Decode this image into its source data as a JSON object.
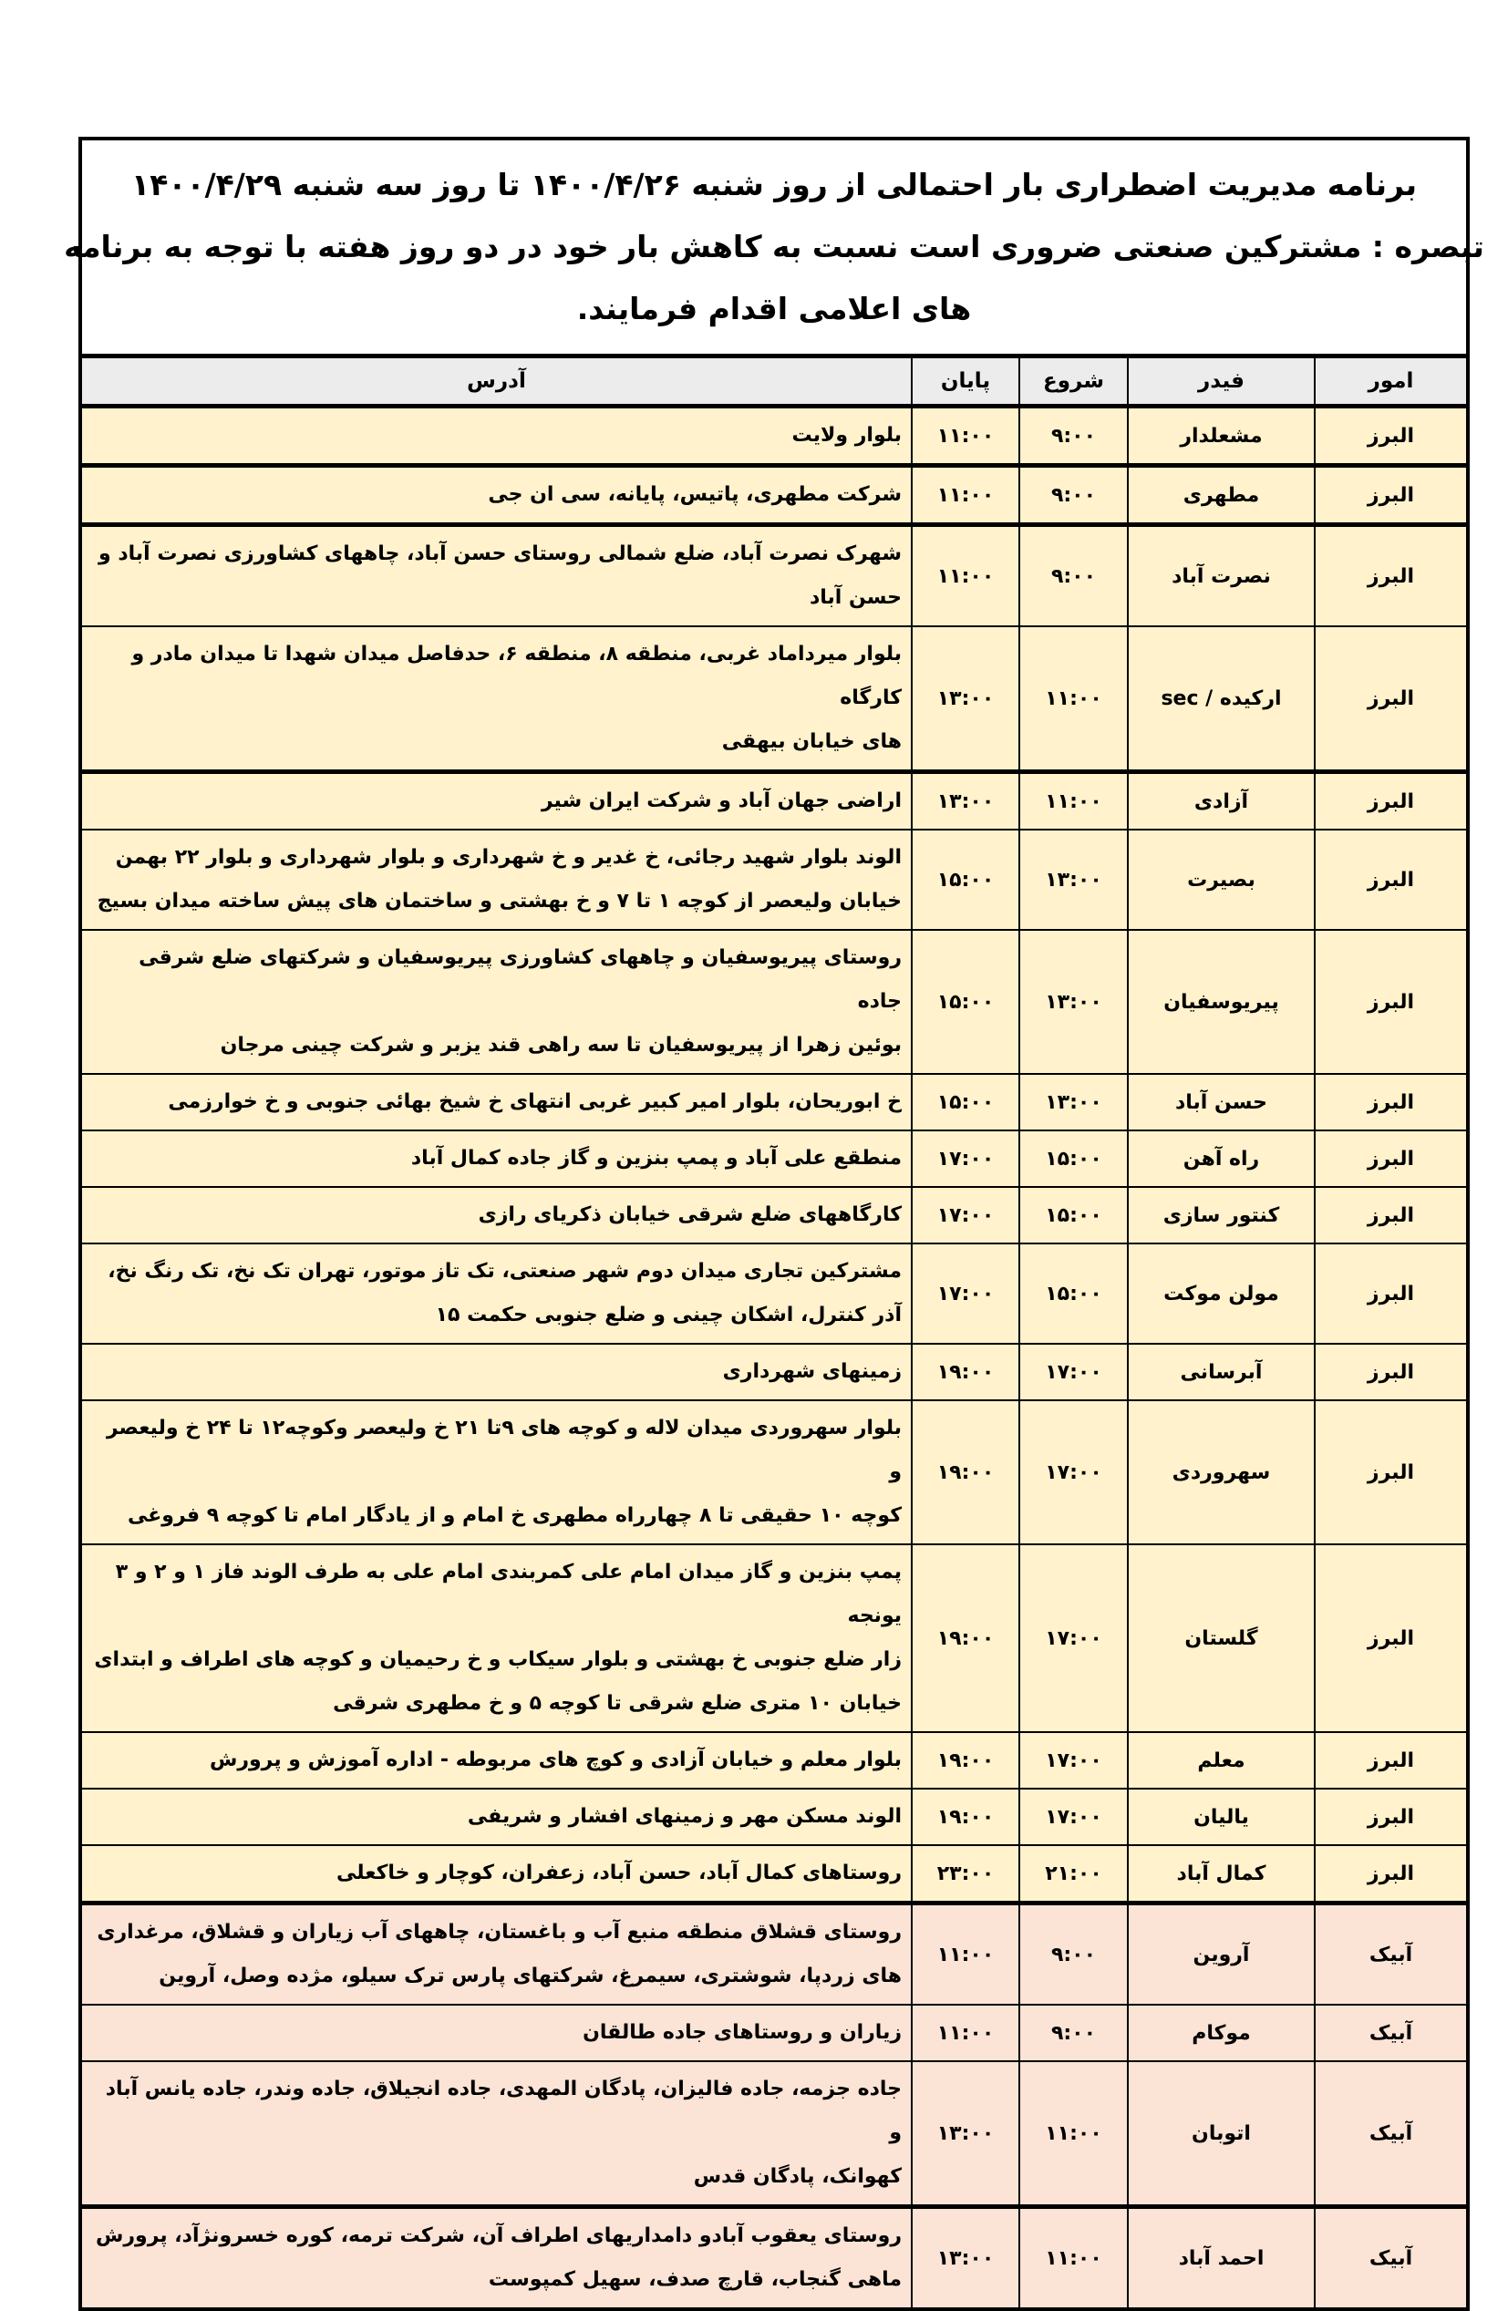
{
  "title": {
    "lines": [
      "برنامه مدیریت اضطراری بار احتمالی از روز شنبه ۱۴۰۰/۴/۲۶ تا روز سه شنبه ۱۴۰۰/۴/۲۹",
      "تبصره : مشترکین صنعتی ضروری است نسبت به کاهش بار خود در دو روز هفته با توجه به برنامه",
      "های اعلامی اقدام فرمایند."
    ]
  },
  "table": {
    "headers": {
      "omur": "امور",
      "feeder": "فیدر",
      "start": "شروع",
      "end": "پایان",
      "address": "آدرس"
    },
    "colors": {
      "alborz": "#fff2cc",
      "abyek": "#fbe4d5"
    },
    "rows": [
      {
        "omur": "البرز",
        "feeder": "مشعلدار",
        "start": "۹:۰۰",
        "end": "۱۱:۰۰",
        "address": [
          "بلوار ولایت"
        ]
      },
      {
        "omur": "البرز",
        "feeder": "مطهری",
        "start": "۹:۰۰",
        "end": "۱۱:۰۰",
        "address": [
          "شرکت مطهری، پاتیس، پایانه، سی ان جی"
        ]
      },
      {
        "omur": "البرز",
        "feeder": "نصرت آباد",
        "start": "۹:۰۰",
        "end": "۱۱:۰۰",
        "address": [
          "شهرک نصرت آباد، ضلع شمالی روستای حسن آباد، چاههای کشاورزی نصرت آباد و",
          "حسن آباد"
        ]
      },
      {
        "omur": "البرز",
        "feeder": "ارکیده / sec",
        "start": "۱۱:۰۰",
        "end": "۱۳:۰۰",
        "address": [
          "بلوار میرداماد غربی، منطقه ۸، منطقه ۶، حدفاصل میدان شهدا تا میدان مادر و کارگاه",
          "های خیابان بیهقی"
        ]
      },
      {
        "omur": "البرز",
        "feeder": "آزادی",
        "start": "۱۱:۰۰",
        "end": "۱۳:۰۰",
        "address": [
          "اراضی جهان آباد و شرکت ایران شیر"
        ]
      },
      {
        "omur": "البرز",
        "feeder": "بصیرت",
        "start": "۱۳:۰۰",
        "end": "۱۵:۰۰",
        "address": [
          "الوند بلوار شهید رجائی، خ غدیر و خ شهرداری و بلوار شهرداری و بلوار ۲۲ بهمن",
          "خیابان ولیعصر از کوچه ۱ تا ۷ و خ بهشتی و ساختمان های پیش ساخته میدان بسیج"
        ]
      },
      {
        "omur": "البرز",
        "feeder": "پیریوسفیان",
        "start": "۱۳:۰۰",
        "end": "۱۵:۰۰",
        "address": [
          "روستای پیریوسفیان و چاههای کشاورزی پیریوسفیان و شرکتهای ضلع شرقی جاده",
          "بوئین زهرا از پیریوسفیان تا سه راهی قند یزبر و شرکت چینی مرجان"
        ]
      },
      {
        "omur": "البرز",
        "feeder": "حسن آباد",
        "start": "۱۳:۰۰",
        "end": "۱۵:۰۰",
        "address": [
          "خ ابوریحان، بلوار امیر کبیر غربی انتهای خ شیخ بهائی جنوبی و خ خوارزمی"
        ]
      },
      {
        "omur": "البرز",
        "feeder": "راه آهن",
        "start": "۱۵:۰۰",
        "end": "۱۷:۰۰",
        "address": [
          "منطقع علی آباد و پمپ بنزین و گاز جاده کمال آباد"
        ]
      },
      {
        "omur": "البرز",
        "feeder": "کنتور سازی",
        "start": "۱۵:۰۰",
        "end": "۱۷:۰۰",
        "address": [
          "کارگاههای ضلع شرقی خیابان ذکریای رازی"
        ]
      },
      {
        "omur": "البرز",
        "feeder": "مولن موکت",
        "start": "۱۵:۰۰",
        "end": "۱۷:۰۰",
        "address": [
          "مشترکین تجاری میدان دوم شهر صنعتی، تک تاز موتور، تهران تک نخ، تک رنگ نخ،",
          "آذر کنترل، اشکان چینی و ضلع جنوبی حکمت ۱۵"
        ]
      },
      {
        "omur": "البرز",
        "feeder": "آبرسانی",
        "start": "۱۷:۰۰",
        "end": "۱۹:۰۰",
        "address": [
          "زمینهای شهرداری"
        ]
      },
      {
        "omur": "البرز",
        "feeder": "سهروردی",
        "start": "۱۷:۰۰",
        "end": "۱۹:۰۰",
        "address": [
          "بلوار سهروردی میدان لاله و کوچه های ۹تا ۲۱ خ ولیعصر وکوچه۱۲ تا ۲۴ خ ولیعصر و",
          "کوچه ۱۰ حقیقی تا ۸ چهارراه مطهری خ امام و از یادگار امام تا کوچه ۹ فروغی"
        ]
      },
      {
        "omur": "البرز",
        "feeder": "گلستان",
        "start": "۱۷:۰۰",
        "end": "۱۹:۰۰",
        "address": [
          "پمپ بنزین و گاز میدان امام علی کمربندی امام علی به طرف الوند فاز ۱ و ۲ و ۳ یونجه",
          "زار ضلع جنوبی خ بهشتی و بلوار سیکاب و خ رحیمیان و کوچه های اطراف و ابتدای",
          "خیابان ۱۰ متری ضلع شرقی تا کوچه ۵ و خ مطهری شرقی"
        ]
      },
      {
        "omur": "البرز",
        "feeder": "معلم",
        "start": "۱۷:۰۰",
        "end": "۱۹:۰۰",
        "address": [
          "بلوار معلم و خیابان آزادی و کوچ های مربوطه - اداره آموزش و پرورش"
        ]
      },
      {
        "omur": "البرز",
        "feeder": "یالیان",
        "start": "۱۷:۰۰",
        "end": "۱۹:۰۰",
        "address": [
          "الوند مسکن مهر و زمینهای افشار و شریفی"
        ]
      },
      {
        "omur": "البرز",
        "feeder": "کمال آباد",
        "start": "۲۱:۰۰",
        "end": "۲۳:۰۰",
        "address": [
          "روستاهای کمال آباد، حسن آباد، زعفران، کوچار و خاکعلی"
        ]
      },
      {
        "omur": "آبیک",
        "feeder": "آروین",
        "start": "۹:۰۰",
        "end": "۱۱:۰۰",
        "address": [
          "روستای قشلاق منطقه منبع آب و باغستان، چاههای آب زیاران و قشلاق، مرغداری",
          "های زردپا، شوشتری، سیمرغ، شرکتهای پارس ترک سیلو، مژده وصل، آروین"
        ]
      },
      {
        "omur": "آبیک",
        "feeder": "موکام",
        "start": "۹:۰۰",
        "end": "۱۱:۰۰",
        "address": [
          "زیاران و روستاهای جاده طالقان"
        ]
      },
      {
        "omur": "آبیک",
        "feeder": "اتوبان",
        "start": "۱۱:۰۰",
        "end": "۱۳:۰۰",
        "address": [
          "جاده جزمه، جاده فالیزان، پادگان المهدی، جاده انجیلاق، جاده وندر، جاده یانس آباد و",
          "کهوانک، پادگان قدس"
        ]
      },
      {
        "omur": "آبیک",
        "feeder": "احمد آباد",
        "start": "۱۱:۰۰",
        "end": "۱۳:۰۰",
        "address": [
          "روستای یعقوب آبادو دامداریهای اطراف آن، شرکت ترمه، کوره خسرونژآد، پرورش",
          "ماهی گنجاب، قارچ صدف، سهیل کمپوست"
        ]
      }
    ]
  }
}
